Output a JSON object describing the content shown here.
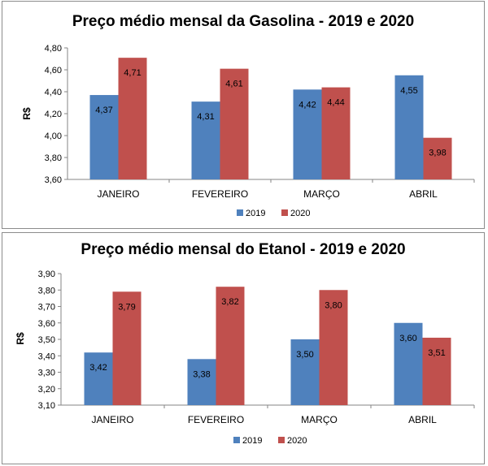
{
  "chart_data": [
    {
      "type": "bar",
      "title": "Preço médio mensal da Gasolina - 2019 e 2020",
      "xlabel": "",
      "ylabel": "R$",
      "categories": [
        "JANEIRO",
        "FEVEREIRO",
        "MARÇO",
        "ABRIL"
      ],
      "ylim": [
        3.6,
        4.8
      ],
      "yticks": [
        "3,60",
        "3,80",
        "4,00",
        "4,20",
        "4,40",
        "4,60",
        "4,80"
      ],
      "series": [
        {
          "name": "2019",
          "color": "#4f81bd",
          "values": [
            4.37,
            4.31,
            4.42,
            4.55
          ],
          "labels": [
            "4,37",
            "4,31",
            "4,42",
            "4,55"
          ]
        },
        {
          "name": "2020",
          "color": "#c0504d",
          "values": [
            4.71,
            4.61,
            4.44,
            3.98
          ],
          "labels": [
            "4,71",
            "4,61",
            "4,44",
            "3,98"
          ]
        }
      ],
      "legend": "bottom",
      "grid": false
    },
    {
      "type": "bar",
      "title": "Preço médio mensal do Etanol - 2019 e 2020",
      "xlabel": "",
      "ylabel": "R$",
      "categories": [
        "JANEIRO",
        "FEVEREIRO",
        "MARÇO",
        "ABRIL"
      ],
      "ylim": [
        3.1,
        3.9
      ],
      "yticks": [
        "3,10",
        "3,20",
        "3,30",
        "3,40",
        "3,50",
        "3,60",
        "3,70",
        "3,80",
        "3,90"
      ],
      "series": [
        {
          "name": "2019",
          "color": "#4f81bd",
          "values": [
            3.42,
            3.38,
            3.5,
            3.6
          ],
          "labels": [
            "3,42",
            "3,38",
            "3,50",
            "3,60"
          ]
        },
        {
          "name": "2020",
          "color": "#c0504d",
          "values": [
            3.79,
            3.82,
            3.8,
            3.51
          ],
          "labels": [
            "3,79",
            "3,82",
            "3,80",
            "3,51"
          ]
        }
      ],
      "legend": "bottom",
      "grid": false
    }
  ]
}
